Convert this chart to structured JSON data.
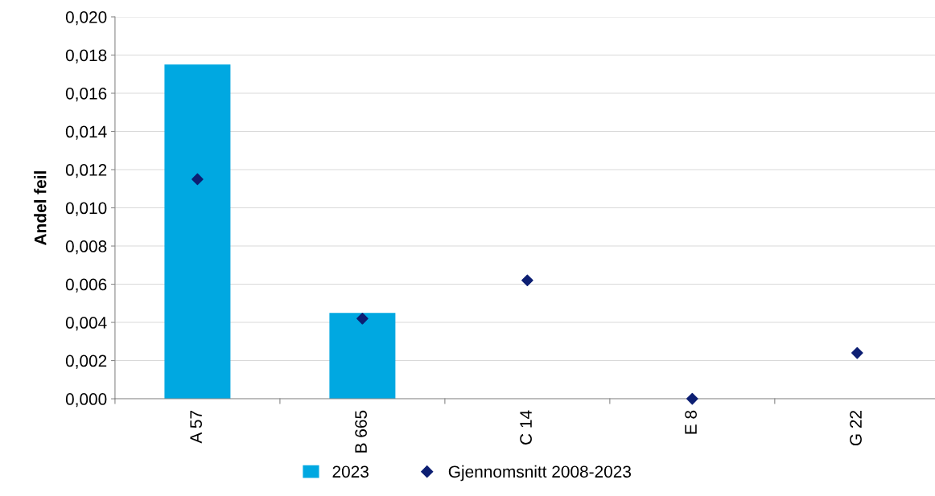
{
  "chart_data": {
    "type": "bar",
    "ylabel": "Andel feil",
    "categories": [
      "A 57",
      "B 665",
      "C 14",
      "E 8",
      "G 22"
    ],
    "series": [
      {
        "name": "2023",
        "color": "#00a8e1",
        "values": [
          0.0175,
          0.0045,
          0,
          0,
          0
        ]
      },
      {
        "name": "Gjennomsnitt 2008-2023",
        "type": "scatter",
        "marker": "diamond",
        "color": "#0d1f73",
        "values": [
          0.0115,
          0.0042,
          0.0062,
          0,
          0.0024
        ]
      }
    ],
    "ylim": [
      0,
      0.02
    ],
    "yticks": [
      {
        "value": 0,
        "label": "0,000"
      },
      {
        "value": 0.002,
        "label": "0,002"
      },
      {
        "value": 0.004,
        "label": "0,004"
      },
      {
        "value": 0.006,
        "label": "0,006"
      },
      {
        "value": 0.008,
        "label": "0,008"
      },
      {
        "value": 0.01,
        "label": "0,010"
      },
      {
        "value": 0.012,
        "label": "0,012"
      },
      {
        "value": 0.014,
        "label": "0,014"
      },
      {
        "value": 0.016,
        "label": "0,016"
      },
      {
        "value": 0.018,
        "label": "0,018"
      },
      {
        "value": 0.02,
        "label": "0,020"
      }
    ],
    "grid": "y",
    "legend": "bottom"
  }
}
